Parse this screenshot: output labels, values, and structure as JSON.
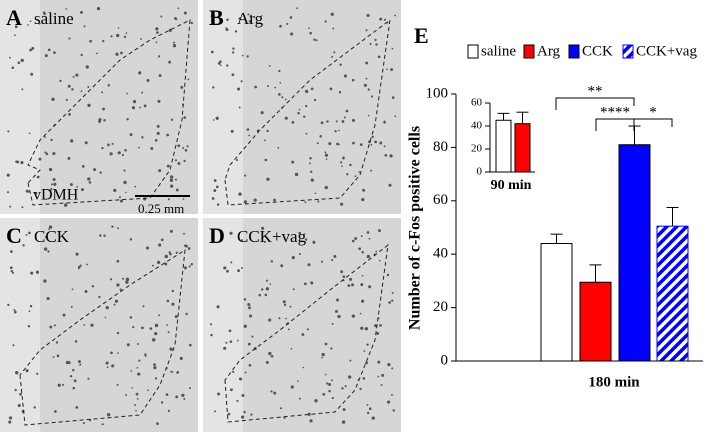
{
  "panels": [
    {
      "letter": "A",
      "label": "saline"
    },
    {
      "letter": "B",
      "label": "Arg"
    },
    {
      "letter": "C",
      "label": "CCK"
    },
    {
      "letter": "D",
      "label": "CCK+vag"
    }
  ],
  "region_label": "vDMH",
  "scale_bar": "0.25 mm",
  "chart_data": [
    {
      "type": "bar",
      "panel_letter": "E",
      "ylabel": "Number of c-Fos positive cells",
      "categories": [
        "180 min"
      ],
      "series": [
        {
          "name": "saline",
          "color": "#ffffff",
          "values": [
            44
          ],
          "errors": [
            3.5
          ]
        },
        {
          "name": "Arg",
          "color": "#ff0000",
          "values": [
            29.5
          ],
          "errors": [
            6.5
          ]
        },
        {
          "name": "CCK",
          "color": "#0000ff",
          "values": [
            81
          ],
          "errors": [
            7
          ]
        },
        {
          "name": "CCK+vag",
          "color": "#0000ff",
          "hatch": true,
          "values": [
            50.5
          ],
          "errors": [
            7
          ]
        }
      ],
      "ylim": [
        0,
        100
      ],
      "yticks": [
        0,
        20,
        40,
        60,
        80,
        100
      ],
      "annotations": [
        "**",
        "****",
        "*"
      ],
      "legend": "top"
    },
    {
      "type": "bar",
      "categories": [
        "90 min"
      ],
      "series": [
        {
          "color": "#ffffff",
          "values": [
            45
          ],
          "errors": [
            6
          ]
        },
        {
          "color": "#ff0000",
          "values": [
            42
          ],
          "errors": [
            10
          ]
        }
      ],
      "ylim": [
        0,
        60
      ],
      "yticks": [
        0,
        20,
        40,
        60
      ]
    }
  ]
}
